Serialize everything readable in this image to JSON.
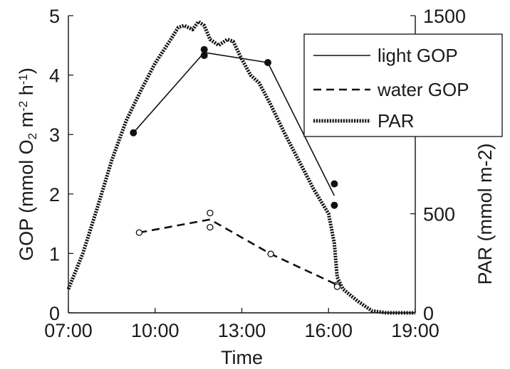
{
  "chart_data": {
    "type": "line",
    "title": "",
    "xlabel": "Time",
    "ylabel_parts": {
      "main": "GOP (mmol O",
      "sub": "2",
      "mid": " m",
      "sup1": "-2",
      "mid2": " h",
      "sup2": "-1",
      "end": ")"
    },
    "y2label": "PAR (mmol m-2)",
    "x_ticks": [
      "07:00",
      "10:00",
      "13:00",
      "16:00",
      "19:00"
    ],
    "x_tick_hours": [
      7,
      10,
      13,
      16,
      19
    ],
    "xlim": [
      7,
      19
    ],
    "ylim": [
      0,
      5
    ],
    "y_ticks": [
      0,
      1,
      2,
      3,
      4,
      5
    ],
    "y2lim": [
      0,
      1500
    ],
    "y2_ticks": [
      0,
      500,
      1500
    ],
    "grid": false,
    "legend_position": "top-right",
    "series": [
      {
        "name": "light GOP",
        "axis": "left",
        "style": "solid",
        "marker": "filled-circle",
        "line": [
          [
            9.25,
            3.03
          ],
          [
            11.7,
            4.38
          ],
          [
            13.9,
            4.21
          ],
          [
            16.2,
            1.97
          ]
        ],
        "points": [
          [
            9.25,
            3.03
          ],
          [
            11.7,
            4.43
          ],
          [
            11.7,
            4.33
          ],
          [
            13.9,
            4.21
          ],
          [
            16.2,
            2.17
          ],
          [
            16.2,
            1.81
          ]
        ]
      },
      {
        "name": "water GOP",
        "axis": "left",
        "style": "dashed",
        "marker": "open-circle",
        "line": [
          [
            9.45,
            1.35
          ],
          [
            11.9,
            1.57
          ],
          [
            14.0,
            0.99
          ],
          [
            16.3,
            0.47
          ]
        ],
        "points": [
          [
            9.45,
            1.35
          ],
          [
            11.9,
            1.68
          ],
          [
            11.9,
            1.44
          ],
          [
            14.0,
            0.99
          ],
          [
            16.3,
            0.47
          ],
          [
            16.3,
            0.44
          ]
        ]
      },
      {
        "name": "PAR",
        "axis": "right",
        "style": "dotted",
        "line": [
          [
            7.0,
            120
          ],
          [
            7.5,
            300
          ],
          [
            8.0,
            530
          ],
          [
            8.5,
            770
          ],
          [
            9.0,
            970
          ],
          [
            9.5,
            1120
          ],
          [
            10.0,
            1260
          ],
          [
            10.5,
            1370
          ],
          [
            10.8,
            1440
          ],
          [
            11.0,
            1450
          ],
          [
            11.3,
            1430
          ],
          [
            11.5,
            1470
          ],
          [
            11.7,
            1450
          ],
          [
            11.9,
            1380
          ],
          [
            12.2,
            1350
          ],
          [
            12.5,
            1380
          ],
          [
            12.7,
            1370
          ],
          [
            13.0,
            1280
          ],
          [
            13.3,
            1200
          ],
          [
            13.6,
            1160
          ],
          [
            14.0,
            1050
          ],
          [
            14.5,
            900
          ],
          [
            15.0,
            760
          ],
          [
            15.5,
            620
          ],
          [
            16.0,
            500
          ],
          [
            16.2,
            350
          ],
          [
            16.3,
            180
          ],
          [
            16.5,
            120
          ],
          [
            17.0,
            60
          ],
          [
            17.5,
            10
          ],
          [
            18.0,
            0
          ],
          [
            19.0,
            0
          ]
        ]
      }
    ]
  }
}
